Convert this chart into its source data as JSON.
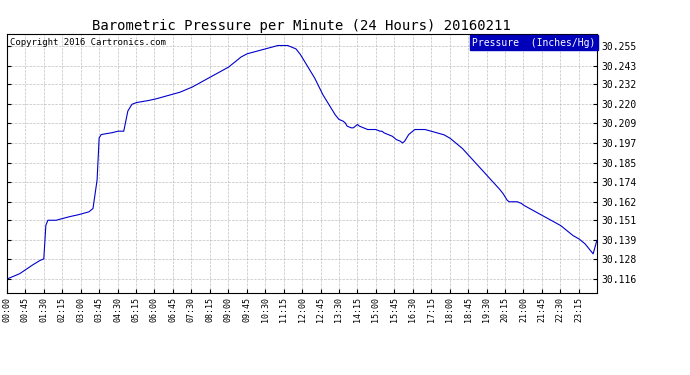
{
  "title": "Barometric Pressure per Minute (24 Hours) 20160211",
  "copyright_text": "Copyright 2016 Cartronics.com",
  "legend_label": "Pressure  (Inches/Hg)",
  "line_color": "#0000cc",
  "background_color": "#ffffff",
  "grid_color": "#b0b0b0",
  "yticks": [
    30.116,
    30.128,
    30.139,
    30.151,
    30.162,
    30.174,
    30.185,
    30.197,
    30.209,
    30.22,
    30.232,
    30.243,
    30.255
  ],
  "ylim": [
    30.108,
    30.262
  ],
  "xtick_labels": [
    "00:00",
    "00:45",
    "01:30",
    "02:15",
    "03:00",
    "03:45",
    "04:30",
    "05:15",
    "06:00",
    "06:45",
    "07:30",
    "08:15",
    "09:00",
    "09:45",
    "10:30",
    "11:15",
    "12:00",
    "12:45",
    "13:30",
    "14:15",
    "15:00",
    "15:45",
    "16:30",
    "17:15",
    "18:00",
    "18:45",
    "19:30",
    "20:15",
    "21:00",
    "21:45",
    "22:30",
    "23:15"
  ]
}
